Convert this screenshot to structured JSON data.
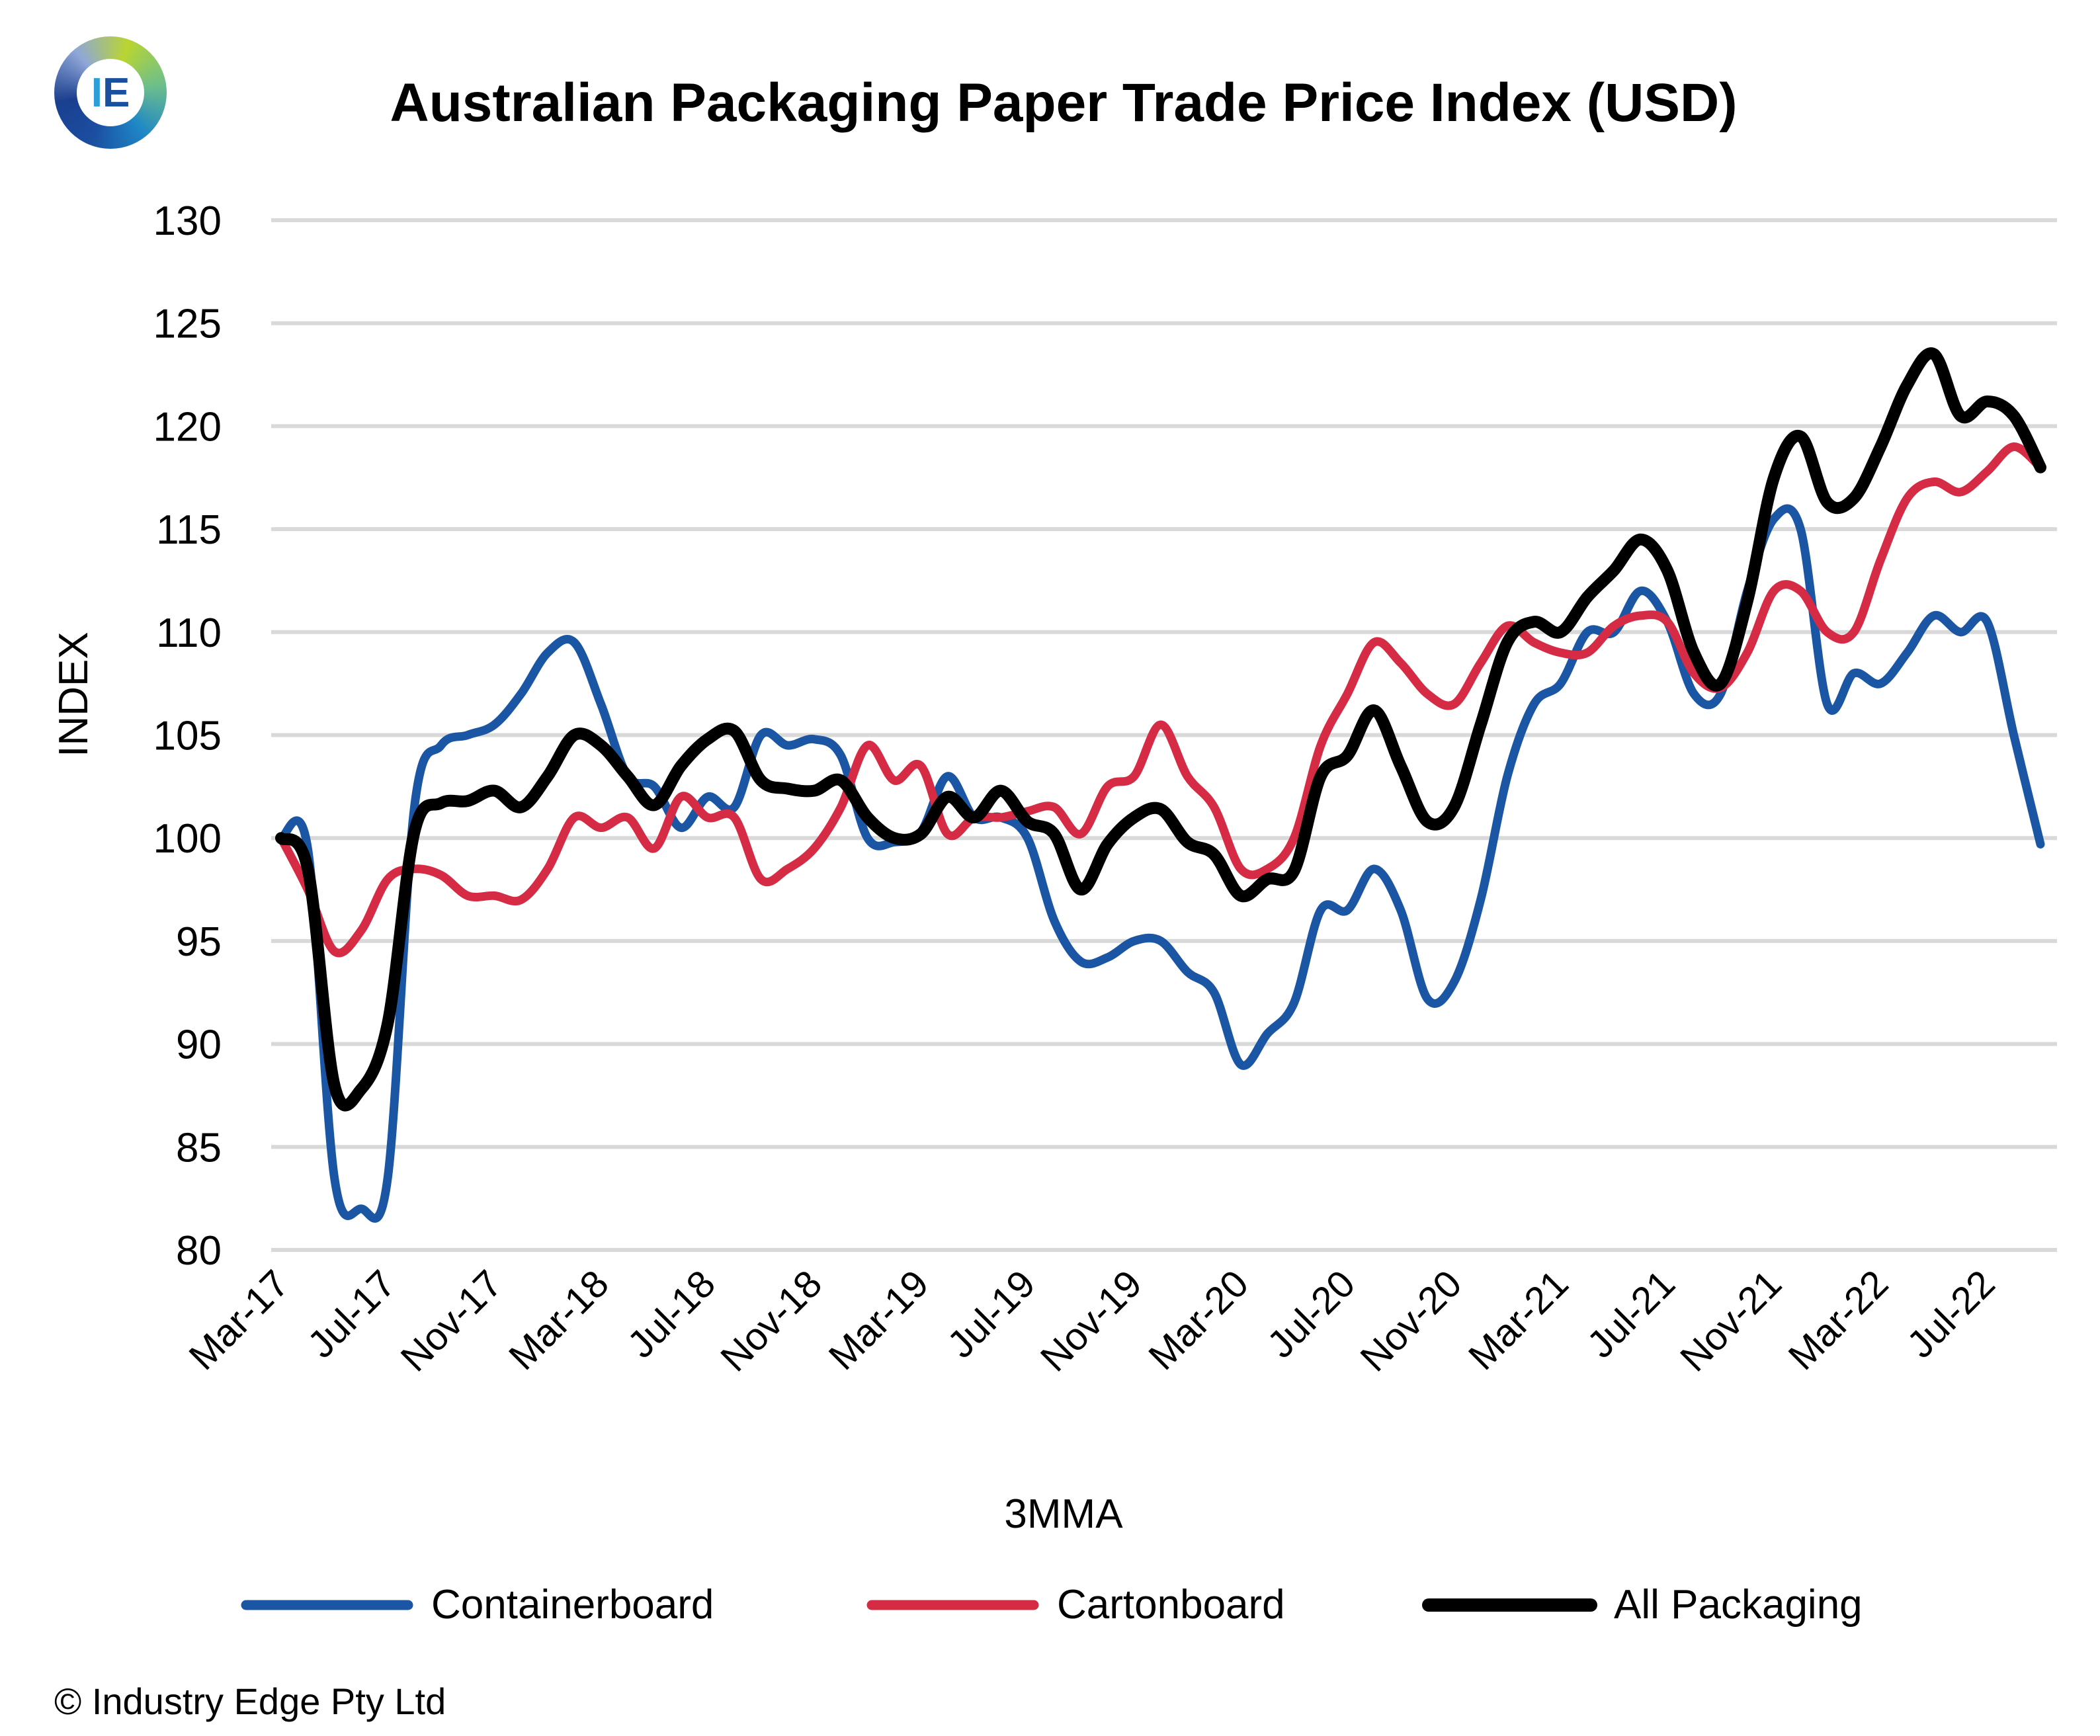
{
  "logo": {
    "letters": "IE"
  },
  "copyright": "© Industry Edge Pty Ltd",
  "chart_data": {
    "type": "line",
    "title": "Australian Packaging Paper Trade Price Index (USD)",
    "xlabel": "3MMA",
    "ylabel": "INDEX",
    "ylim": [
      80,
      130
    ],
    "yticks": [
      80,
      85,
      90,
      95,
      100,
      105,
      110,
      115,
      120,
      125,
      130
    ],
    "grid": "horizontal",
    "legend_position": "bottom",
    "tick_labels": [
      "Mar-17",
      "Jul-17",
      "Nov-17",
      "Mar-18",
      "Jul-18",
      "Nov-18",
      "Mar-19",
      "Jul-19",
      "Nov-19",
      "Mar-20",
      "Jul-20",
      "Nov-20",
      "Mar-21",
      "Jul-21",
      "Nov-21",
      "Mar-22",
      "Jul-22"
    ],
    "x": [
      "Mar-17",
      "Apr-17",
      "May-17",
      "Jun-17",
      "Jul-17",
      "Aug-17",
      "Sep-17",
      "Oct-17",
      "Nov-17",
      "Dec-17",
      "Jan-18",
      "Feb-18",
      "Mar-18",
      "Apr-18",
      "May-18",
      "Jun-18",
      "Jul-18",
      "Aug-18",
      "Sep-18",
      "Oct-18",
      "Nov-18",
      "Dec-18",
      "Jan-19",
      "Feb-19",
      "Mar-19",
      "Apr-19",
      "May-19",
      "Jun-19",
      "Jul-19",
      "Aug-19",
      "Sep-19",
      "Oct-19",
      "Nov-19",
      "Dec-19",
      "Jan-20",
      "Feb-20",
      "Mar-20",
      "Apr-20",
      "May-20",
      "Jun-20",
      "Jul-20",
      "Aug-20",
      "Sep-20",
      "Oct-20",
      "Nov-20",
      "Dec-20",
      "Jan-21",
      "Feb-21",
      "Mar-21",
      "Apr-21",
      "May-21",
      "Jun-21",
      "Jul-21",
      "Aug-21",
      "Sep-21",
      "Oct-21",
      "Nov-21",
      "Dec-21",
      "Jan-22",
      "Feb-22",
      "Mar-22",
      "Apr-22",
      "May-22",
      "Jun-22",
      "Jul-22",
      "Aug-22",
      "Sep-22"
    ],
    "series": [
      {
        "name": "Containerboard",
        "color": "#1a56a3",
        "values": [
          100,
          99.5,
          83.5,
          82,
          83.5,
          101.5,
          104.5,
          105,
          105.5,
          107,
          109,
          109.5,
          106.5,
          103,
          102.5,
          100.5,
          102,
          101.5,
          105,
          104.5,
          104.8,
          104,
          100,
          99.8,
          100.3,
          103,
          101,
          101,
          100,
          96,
          94,
          94.2,
          95,
          95,
          93.5,
          92.5,
          89,
          90.5,
          92,
          96.5,
          96.5,
          98.5,
          96.5,
          92.2,
          93,
          97,
          103,
          106.5,
          107.5,
          110,
          110,
          112,
          110.5,
          107,
          107,
          112,
          115.5,
          115,
          106.5,
          108,
          107.5,
          109,
          110.8,
          110,
          110.5,
          105,
          99.7
        ]
      },
      {
        "name": "Cartonboard",
        "color": "#d62b45",
        "values": [
          100,
          97.5,
          94.5,
          95.5,
          98,
          98.5,
          98.2,
          97.2,
          97.2,
          97,
          98.5,
          101,
          100.5,
          101,
          99.5,
          102,
          101,
          101,
          98,
          98.5,
          99.5,
          101.5,
          104.5,
          102.8,
          103.5,
          100.2,
          101,
          101,
          101.3,
          101.5,
          100.2,
          102.5,
          103,
          105.5,
          103,
          101.5,
          98.5,
          98.5,
          100,
          104.5,
          107,
          109.5,
          108.5,
          107,
          106.5,
          108.5,
          110.3,
          109.5,
          109,
          109,
          110.3,
          110.8,
          110.5,
          108,
          107.3,
          109,
          112,
          112,
          110,
          110,
          113.5,
          116.5,
          117.3,
          116.8,
          117.8,
          119,
          118
        ]
      },
      {
        "name": "All Packaging",
        "color": "#000000",
        "values": [
          100,
          98.5,
          88,
          87.8,
          91,
          100.3,
          101.7,
          101.8,
          102.3,
          101.5,
          103,
          105,
          104.5,
          103,
          101.6,
          103.5,
          104.8,
          105.2,
          102.8,
          102.4,
          102.3,
          102.8,
          101,
          100,
          100.2,
          102,
          101,
          102.3,
          100.8,
          100.2,
          97.5,
          99.7,
          101,
          101.4,
          99.8,
          99.2,
          97.2,
          98,
          98.4,
          103,
          104,
          106.2,
          103.5,
          100.8,
          101.5,
          105.5,
          109.5,
          110.5,
          110,
          111.7,
          113,
          114.5,
          113,
          109,
          107.5,
          111.5,
          117.5,
          119.5,
          116.3,
          116.5,
          119,
          122,
          123.5,
          120.5,
          121.2,
          120.5,
          118
        ]
      }
    ]
  }
}
